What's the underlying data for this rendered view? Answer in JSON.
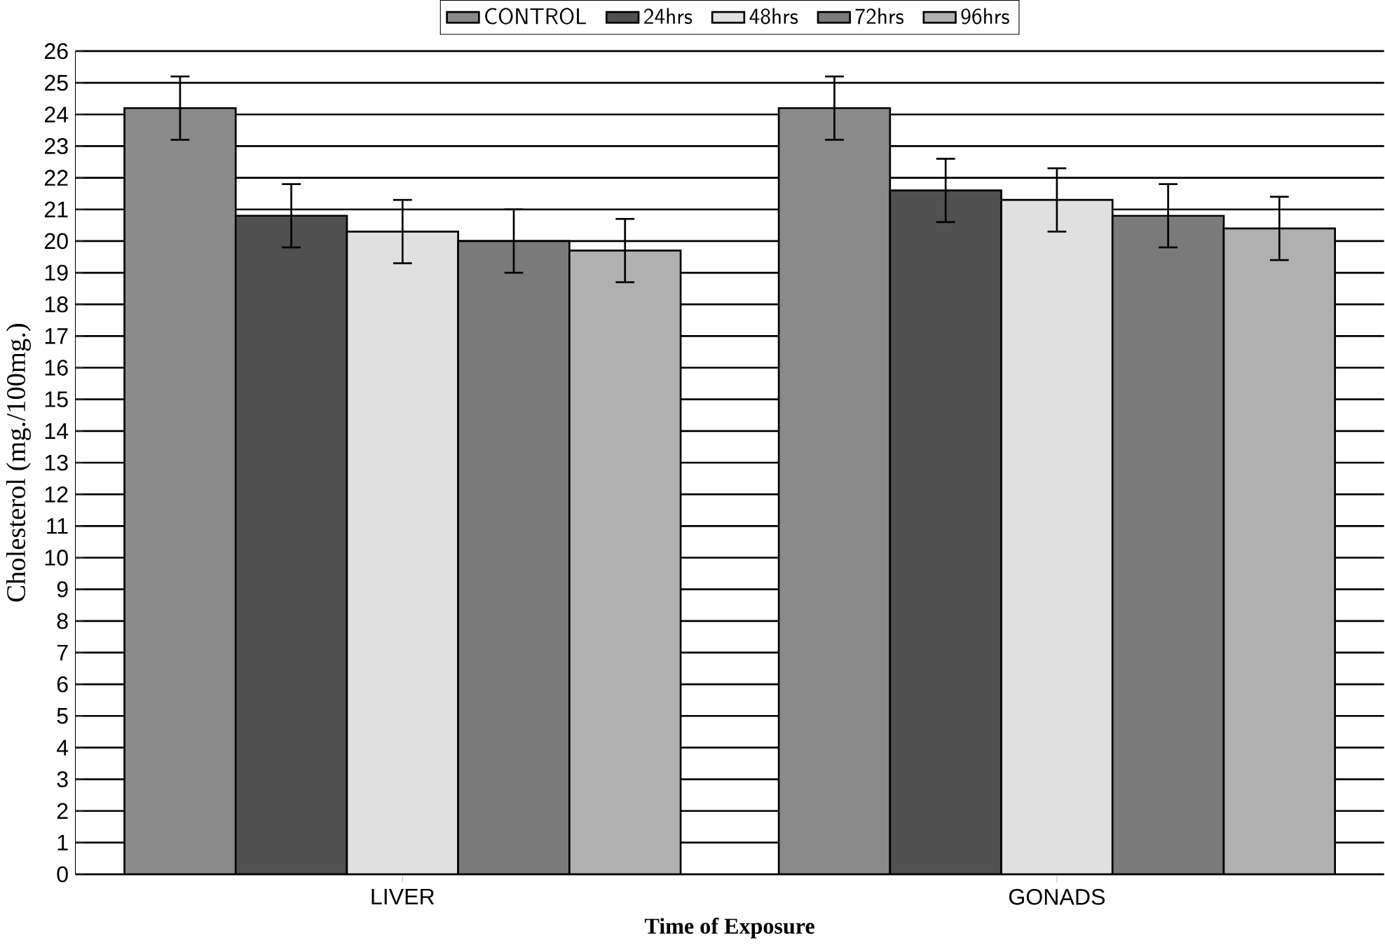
{
  "chart_data": {
    "type": "bar",
    "xlabel": "Time of Exposure",
    "ylabel": "Cholesterol (mg./100mg.)",
    "categories": [
      "LIVER",
      "GONADS"
    ],
    "series": [
      {
        "name": "CONTROL",
        "color": "#8a8a8a",
        "values": [
          24.2,
          24.2
        ],
        "errors": [
          1,
          1
        ]
      },
      {
        "name": "24hrs",
        "color": "#505050",
        "values": [
          20.8,
          21.6
        ],
        "errors": [
          1,
          1
        ]
      },
      {
        "name": "48hrs",
        "color": "#e0e0e0",
        "values": [
          20.3,
          21.3
        ],
        "errors": [
          1,
          1
        ]
      },
      {
        "name": "72hrs",
        "color": "#7a7a7a",
        "values": [
          20.0,
          20.8
        ],
        "errors": [
          1,
          1
        ]
      },
      {
        "name": "96hrs",
        "color": "#b0b0b0",
        "values": [
          19.7,
          20.4
        ],
        "errors": [
          1,
          1
        ]
      }
    ],
    "ylim": [
      0,
      26
    ],
    "yticks": [
      0,
      1,
      2,
      3,
      4,
      5,
      6,
      7,
      8,
      9,
      10,
      11,
      12,
      13,
      14,
      15,
      16,
      17,
      18,
      19,
      20,
      21,
      22,
      23,
      24,
      25,
      26
    ],
    "grid": "y",
    "legend": "top"
  }
}
